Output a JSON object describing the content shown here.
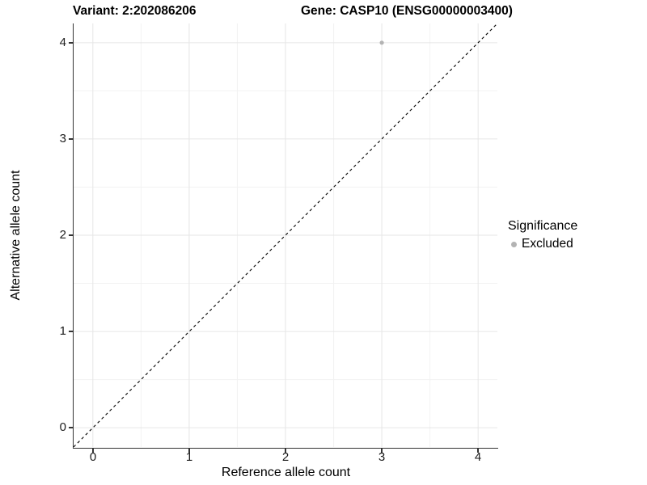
{
  "chart_data": {
    "type": "scatter",
    "title_left": "Variant: 2:202086206",
    "title_right": "Gene: CASP10 (ENSG00000003400)",
    "xlabel": "Reference allele count",
    "ylabel": "Alternative allele count",
    "xlim": [
      -0.2,
      4.2
    ],
    "ylim": [
      -0.2,
      4.2
    ],
    "x_ticks": [
      "0",
      "1",
      "2",
      "3",
      "4"
    ],
    "y_ticks": [
      "0",
      "1",
      "2",
      "3",
      "4"
    ],
    "minor_ticks": [
      0.5,
      1.5,
      2.5,
      3.5
    ],
    "grid": {
      "major": true,
      "minor": true
    },
    "series": [
      {
        "name": "Excluded",
        "color": "#b3b3b3",
        "marker_radius": 2.6,
        "points": [
          [
            3,
            4
          ]
        ]
      }
    ],
    "reference_line": {
      "type": "identity",
      "slope": 1,
      "intercept": 0,
      "linestyle": "dashed",
      "color": "#000000"
    },
    "legend": {
      "title": "Significance",
      "position": "right",
      "items": [
        {
          "label": "Excluded",
          "marker_color": "#b3b3b3"
        }
      ]
    },
    "colors": {
      "background": "#ffffff",
      "axis_line": "#333333",
      "tick_mark": "#333333",
      "tick_text": "#1a1a1a",
      "grid_major": "#e6e6e6",
      "grid_minor": "#f2f2f2"
    }
  }
}
